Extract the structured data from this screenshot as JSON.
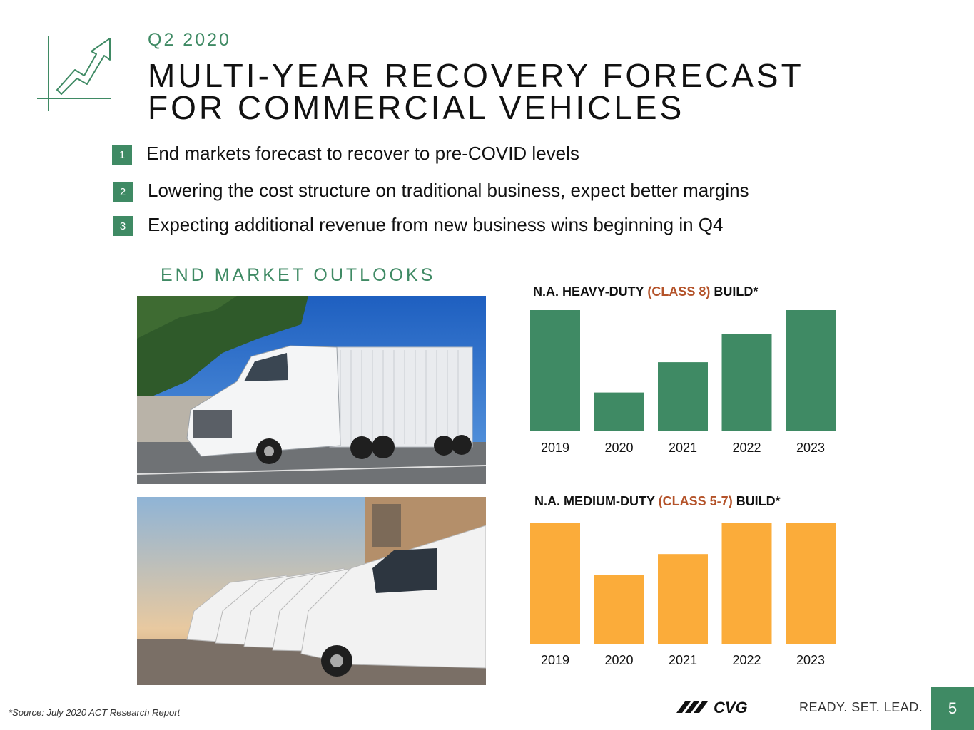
{
  "header": {
    "quarter": "Q2 2020",
    "title_line1": "MULTI-YEAR RECOVERY FORECAST",
    "title_line2": "FOR COMMERCIAL VEHICLES"
  },
  "bullets": [
    {
      "number": "1",
      "text": "End markets forecast to recover to pre-COVID levels"
    },
    {
      "number": "2",
      "text": "Lowering the cost structure on traditional business, expect better margins"
    },
    {
      "number": "3",
      "text": "Expecting additional revenue from new business wins beginning in Q4"
    }
  ],
  "section_label": "END MARKET OUTLOOKS",
  "chart_data": [
    {
      "type": "bar",
      "title_prefix": "N.A. HEAVY-DUTY ",
      "title_accent": "(CLASS 8)",
      "title_suffix": " BUILD*",
      "categories": [
        "2019",
        "2020",
        "2021",
        "2022",
        "2023"
      ],
      "values": [
        100,
        32,
        57,
        80,
        100
      ],
      "ylim": [
        0,
        100
      ],
      "color": "#3f8a64",
      "xlabel": "",
      "ylabel": "",
      "grid": false
    },
    {
      "type": "bar",
      "title_prefix": "N.A. MEDIUM-DUTY ",
      "title_accent": "(CLASS 5-7)",
      "title_suffix": " BUILD*",
      "categories": [
        "2019",
        "2020",
        "2021",
        "2022",
        "2023"
      ],
      "values": [
        100,
        57,
        74,
        100,
        100
      ],
      "ylim": [
        0,
        100
      ],
      "color": "#fbac3a",
      "xlabel": "",
      "ylabel": "",
      "grid": false
    }
  ],
  "footer": {
    "source": "*Source: July 2020 ACT Research Report",
    "brand": "CVG",
    "tagline": "READY. SET. LEAD.",
    "page_number": "5"
  },
  "colors": {
    "brand_green": "#3f8a64",
    "accent_orange": "#b4532a",
    "bar_yellow": "#fbac3a"
  },
  "icons": {
    "header_icon": "growth-chart-icon",
    "truck_photo": "semi-truck-photo",
    "van_photo": "van-fleet-photo"
  }
}
